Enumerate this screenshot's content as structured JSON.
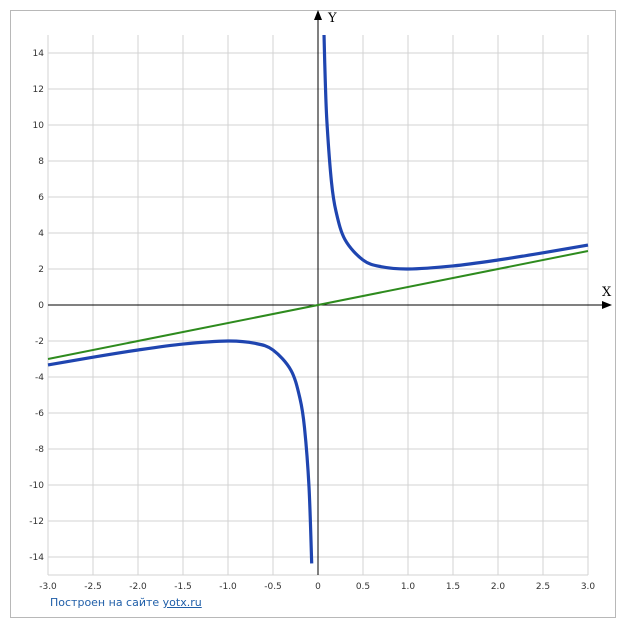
{
  "chart_data": {
    "type": "line",
    "xlabel": "X",
    "ylabel": "Y",
    "xlim": [
      -3.0,
      3.0
    ],
    "ylim": [
      -15,
      15
    ],
    "x_ticks": [
      "-3.0",
      "-2.5",
      "-2.0",
      "-1.5",
      "-1.0",
      "-0.5",
      "0",
      "0.5",
      "1.0",
      "1.5",
      "2.0",
      "2.5",
      "3.0"
    ],
    "y_ticks": [
      "14",
      "12",
      "10",
      "8",
      "6",
      "4",
      "2",
      "0",
      "-2",
      "-4",
      "-6",
      "-8",
      "-10",
      "-12",
      "-14"
    ],
    "grid": true,
    "series": [
      {
        "color": "#1f45b0",
        "points_left": [
          [
            -3.0,
            -3.33
          ],
          [
            -2.5,
            -2.9
          ],
          [
            -2.0,
            -2.5
          ],
          [
            -1.5,
            -2.17
          ],
          [
            -1.0,
            -2.0
          ],
          [
            -0.7,
            -2.13
          ],
          [
            -0.5,
            -2.5
          ],
          [
            -0.3,
            -3.63
          ],
          [
            -0.2,
            -5.2
          ],
          [
            -0.15,
            -6.82
          ],
          [
            -0.1,
            -10.1
          ],
          [
            -0.07,
            -14.36
          ]
        ],
        "points_right": [
          [
            0.067,
            15.0
          ],
          [
            0.08,
            12.58
          ],
          [
            0.1,
            10.1
          ],
          [
            0.15,
            6.82
          ],
          [
            0.2,
            5.2
          ],
          [
            0.3,
            3.63
          ],
          [
            0.5,
            2.5
          ],
          [
            0.7,
            2.13
          ],
          [
            1.0,
            2.0
          ],
          [
            1.5,
            2.17
          ],
          [
            2.0,
            2.5
          ],
          [
            2.5,
            2.9
          ],
          [
            3.0,
            3.33
          ]
        ]
      },
      {
        "color": "#2e8b1e",
        "points": [
          [
            -3.0,
            -3.0
          ],
          [
            3.0,
            3.0
          ]
        ]
      }
    ]
  },
  "credit": {
    "text": "Построен на сайте",
    "link": "yotx.ru"
  },
  "colors": {
    "grid": "#d3d3d3",
    "axis": "#000000",
    "frame": "#b8b8b8"
  }
}
